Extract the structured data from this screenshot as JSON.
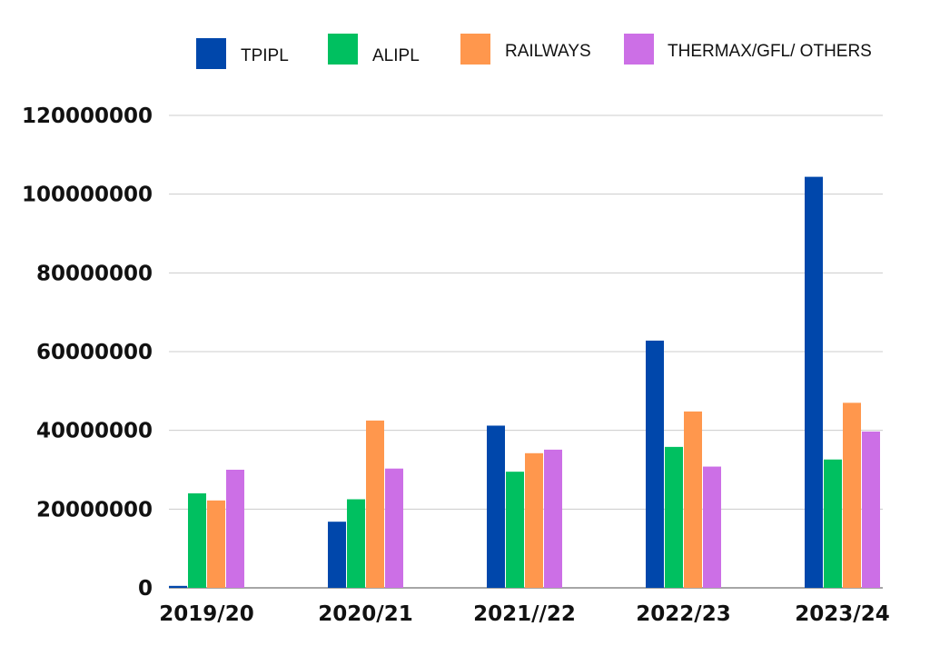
{
  "chart_data": {
    "type": "bar",
    "categories": [
      "2019/20",
      "2020/21",
      "2021//22",
      "2022/23",
      "2023/24"
    ],
    "series": [
      {
        "name": "TPIPL",
        "color": "#0047AB",
        "values": [
          500000,
          16800000,
          41200000,
          62800000,
          104400000
        ]
      },
      {
        "name": "ALIPL",
        "color": "#00C060",
        "values": [
          24000000,
          22500000,
          29500000,
          35800000,
          32600000
        ]
      },
      {
        "name": "RAILWAYS",
        "color": "#FF974D",
        "values": [
          22200000,
          42500000,
          34200000,
          44800000,
          47000000
        ]
      },
      {
        "name": "THERMAX/GFL/ OTHERS",
        "color": "#CC6FE6",
        "values": [
          30000000,
          30300000,
          35100000,
          30800000,
          39700000
        ]
      }
    ],
    "y_ticks": [
      "0",
      "20000000",
      "40000000",
      "60000000",
      "80000000",
      "100000000",
      "120000000"
    ],
    "ylim": [
      0,
      120000000
    ],
    "grid": true,
    "legend_position": "top"
  }
}
